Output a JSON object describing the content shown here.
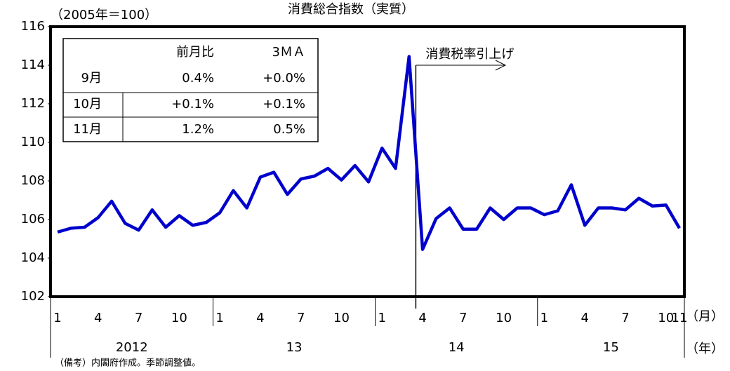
{
  "chart_data": {
    "type": "line",
    "title": "消費総合指数（実質）",
    "ylabel": "（2005年＝100）",
    "x_unit": "（月）",
    "year_unit": "（年）",
    "note": "（備考）内閣府作成。季節調整値。",
    "annotation": "消費税率引上げ",
    "categories": [
      "1",
      null,
      null,
      "4",
      null,
      null,
      "7",
      null,
      null,
      "10",
      null,
      null,
      "1",
      null,
      null,
      "4",
      null,
      null,
      "7",
      null,
      null,
      "10",
      null,
      null,
      "1",
      null,
      null,
      "4",
      null,
      null,
      "7",
      null,
      null,
      "10",
      null,
      null,
      "1",
      null,
      null,
      "4",
      null,
      null,
      "7",
      null,
      null,
      "10",
      "11"
    ],
    "year_labels": [
      "2012",
      "13",
      "14",
      "15"
    ],
    "series": [
      {
        "name": "消費総合指数",
        "color": "#0000cc",
        "values": [
          105.35,
          105.55,
          105.6,
          106.1,
          106.95,
          105.8,
          105.45,
          106.5,
          105.6,
          106.2,
          105.7,
          105.85,
          106.35,
          107.5,
          106.6,
          108.2,
          108.45,
          107.3,
          108.1,
          108.25,
          108.65,
          108.05,
          108.8,
          107.95,
          109.7,
          108.65,
          114.45,
          104.45,
          106.05,
          106.6,
          105.5,
          105.5,
          106.6,
          106.0,
          106.6,
          106.6,
          106.25,
          106.45,
          107.8,
          105.7,
          106.6,
          106.6,
          106.5,
          107.1,
          106.7,
          106.75,
          105.55
        ]
      }
    ],
    "ylim": [
      102,
      116
    ],
    "yticks": [
      102,
      104,
      106,
      108,
      110,
      112,
      114,
      116
    ],
    "table": {
      "header": [
        "前月比",
        "3ＭＡ"
      ],
      "rows": [
        [
          "9月",
          "0.4%",
          "+0.0%"
        ],
        [
          "10月",
          "+0.1%",
          "+0.1%"
        ],
        [
          "11月",
          "1.2%",
          "0.5%"
        ]
      ]
    }
  }
}
